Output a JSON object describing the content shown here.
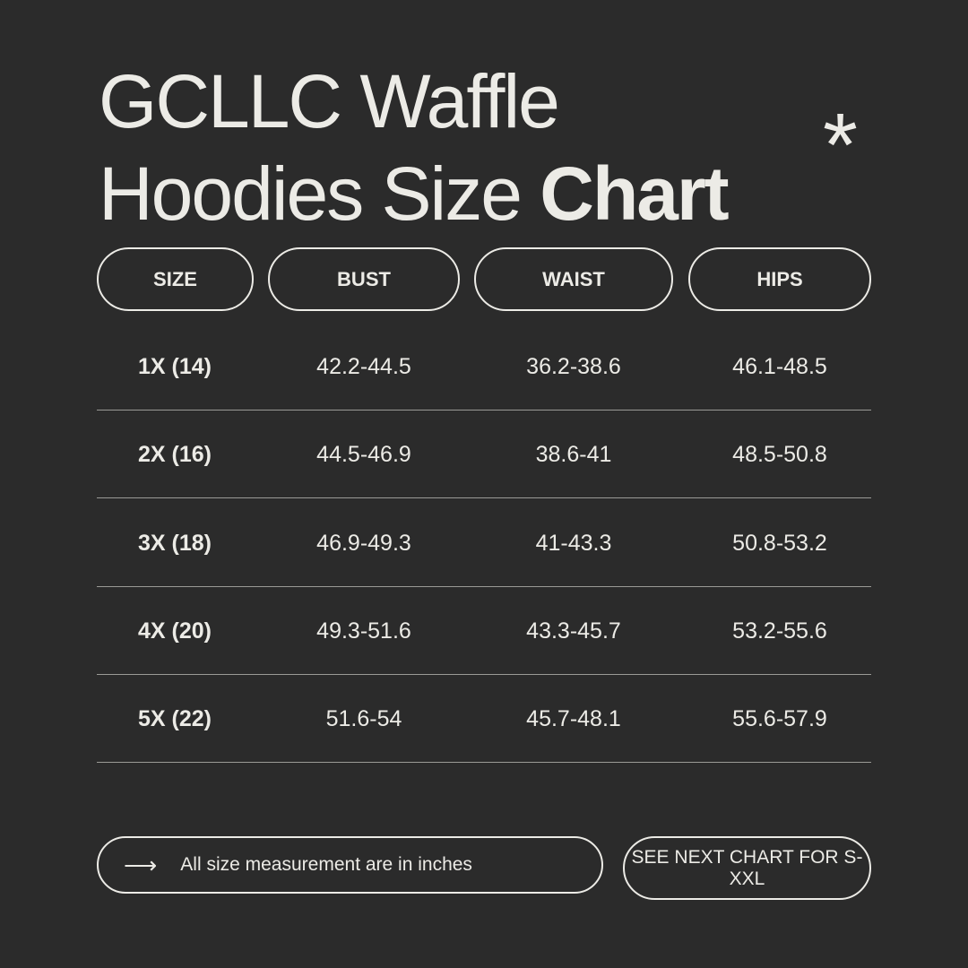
{
  "title": {
    "line1": "GCLLC Waffle",
    "line2_regular": "Hoodies Size",
    "line2_bold": "Chart",
    "decoration": "asterisk-icon"
  },
  "colors": {
    "background": "#2b2b2b",
    "text": "#ecebe6"
  },
  "table": {
    "headers": [
      "SIZE",
      "BUST",
      "WAIST",
      "HIPS"
    ],
    "rows": [
      [
        "1X (14)",
        "42.2-44.5",
        "36.2-38.6",
        "46.1-48.5"
      ],
      [
        "2X (16)",
        "44.5-46.9",
        "38.6-41",
        "48.5-50.8"
      ],
      [
        "3X (18)",
        "46.9-49.3",
        "41-43.3",
        "50.8-53.2"
      ],
      [
        "4X (20)",
        "49.3-51.6",
        "43.3-45.7",
        "53.2-55.6"
      ],
      [
        "5X (22)",
        "51.6-54",
        "45.7-48.1",
        "55.6-57.9"
      ]
    ]
  },
  "footer": {
    "note": "All size measurement are in inches",
    "note_icon": "arrow-right-icon",
    "next": "SEE NEXT CHART FOR S-XXL"
  }
}
